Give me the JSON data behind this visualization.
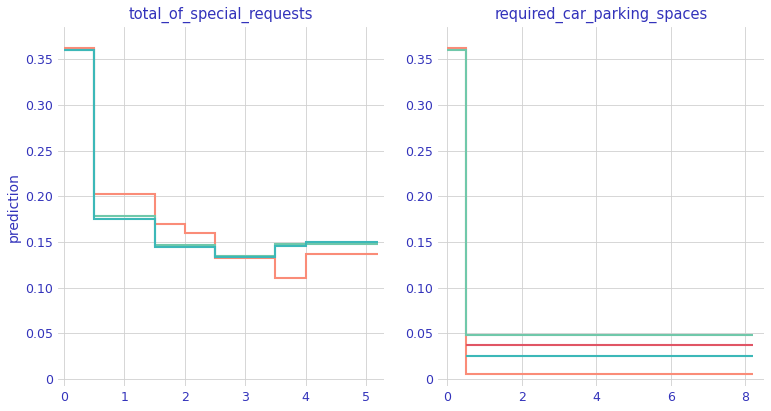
{
  "title1": "total_of_special_requests",
  "title2": "required_car_parking_spaces",
  "ylabel": "prediction",
  "title_color": "#3333bb",
  "label_color": "#3333bb",
  "tick_color": "#3333bb",
  "bg_color": "#ffffff",
  "grid_color": "#d0d0d0",
  "plot1": {
    "lines": [
      {
        "color": "#fa8c78",
        "x": [
          0,
          0.5,
          0.5,
          1.5,
          1.5,
          2.0,
          2.0,
          2.5,
          2.5,
          3.5,
          3.5,
          4.0,
          4.0,
          5.2
        ],
        "y": [
          0.362,
          0.362,
          0.202,
          0.202,
          0.17,
          0.17,
          0.16,
          0.16,
          0.132,
          0.132,
          0.11,
          0.11,
          0.137,
          0.137
        ]
      },
      {
        "color": "#70c8aa",
        "x": [
          0,
          0.5,
          0.5,
          1.5,
          1.5,
          2.5,
          2.5,
          3.5,
          3.5,
          4.0,
          4.0,
          5.2
        ],
        "y": [
          0.36,
          0.36,
          0.178,
          0.178,
          0.147,
          0.147,
          0.135,
          0.135,
          0.148,
          0.148,
          0.148,
          0.148
        ]
      },
      {
        "color": "#3cb8b8",
        "x": [
          0,
          0.5,
          0.5,
          1.5,
          1.5,
          2.5,
          2.5,
          3.5,
          3.5,
          4.0,
          4.0,
          5.2
        ],
        "y": [
          0.36,
          0.36,
          0.175,
          0.175,
          0.144,
          0.144,
          0.133,
          0.133,
          0.145,
          0.145,
          0.15,
          0.15
        ]
      }
    ],
    "xlim": [
      -0.1,
      5.3
    ],
    "ylim": [
      -0.008,
      0.385
    ],
    "xticks": [
      0,
      1,
      2,
      3,
      4,
      5
    ],
    "yticks": [
      0,
      0.05,
      0.1,
      0.15,
      0.2,
      0.25,
      0.3,
      0.35
    ]
  },
  "plot2": {
    "lines": [
      {
        "color": "#fa8c78",
        "x": [
          0,
          0.5,
          0.5,
          8.2
        ],
        "y": [
          0.362,
          0.362,
          0.005,
          0.005
        ]
      },
      {
        "color": "#70c8aa",
        "x": [
          0,
          0.5,
          0.5,
          8.2
        ],
        "y": [
          0.36,
          0.36,
          0.048,
          0.048
        ]
      },
      {
        "color": "#e05565",
        "x": [
          0.5,
          8.2
        ],
        "y": [
          0.037,
          0.037
        ]
      },
      {
        "color": "#3cb8b8",
        "x": [
          0.5,
          8.2
        ],
        "y": [
          0.025,
          0.025
        ]
      }
    ],
    "xlim": [
      -0.25,
      8.5
    ],
    "ylim": [
      -0.008,
      0.385
    ],
    "xticks": [
      0,
      2,
      4,
      6,
      8
    ],
    "yticks": [
      0,
      0.05,
      0.1,
      0.15,
      0.2,
      0.25,
      0.3,
      0.35
    ]
  }
}
